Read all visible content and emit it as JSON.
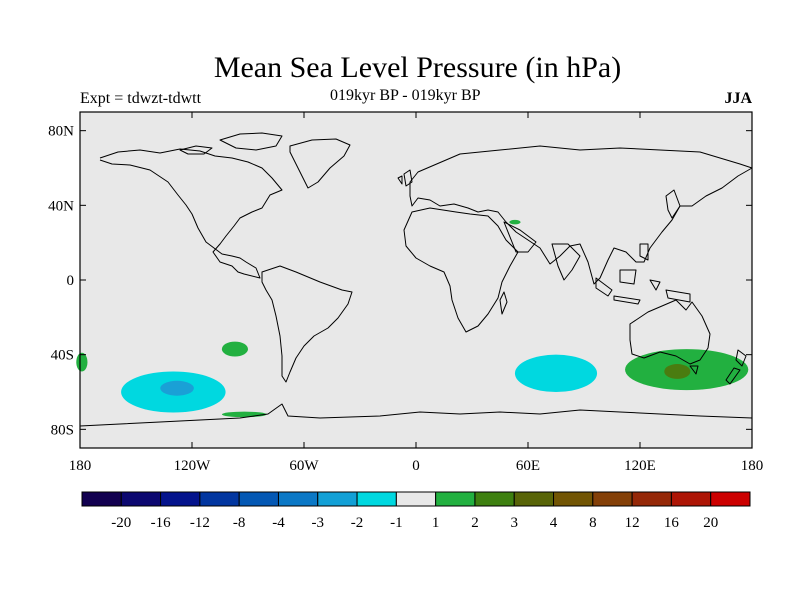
{
  "title": "Mean Sea Level Pressure (in hPa)",
  "experiment": "Expt = tdwzt-tdwtt",
  "period": "019kyr BP - 019kyr BP",
  "season": "JJA",
  "map": {
    "background": "#e8e8e8",
    "lat_ticks": [
      {
        "value": 80,
        "label": "80N"
      },
      {
        "value": 40,
        "label": "40N"
      },
      {
        "value": 0,
        "label": "0"
      },
      {
        "value": -40,
        "label": "40S"
      },
      {
        "value": -80,
        "label": "80S"
      }
    ],
    "lon_ticks": [
      {
        "value": -180,
        "label": "180"
      },
      {
        "value": -120,
        "label": "120W"
      },
      {
        "value": -60,
        "label": "60W"
      },
      {
        "value": 0,
        "label": "0"
      },
      {
        "value": 60,
        "label": "60E"
      },
      {
        "value": 120,
        "label": "120E"
      },
      {
        "value": 180,
        "label": "180"
      }
    ],
    "anomalies": [
      {
        "name": "south-pacific-low",
        "lon": -130,
        "lat": -60,
        "lon_r": 28,
        "lat_r": 11,
        "color": "#00d8e0"
      },
      {
        "name": "south-pacific-low-core",
        "lon": -128,
        "lat": -58,
        "lon_r": 9,
        "lat_r": 4,
        "color": "#1aa0d6"
      },
      {
        "name": "south-indian-low",
        "lon": 75,
        "lat": -50,
        "lon_r": 22,
        "lat_r": 10,
        "color": "#00d8e0"
      },
      {
        "name": "australia-high",
        "lon": 145,
        "lat": -48,
        "lon_r": 33,
        "lat_r": 11,
        "color": "#22b040"
      },
      {
        "name": "australia-high-core",
        "lon": 140,
        "lat": -49,
        "lon_r": 7,
        "lat_r": 4,
        "color": "#4a7c10"
      },
      {
        "name": "se-pacific-high",
        "lon": -97,
        "lat": -37,
        "lon_r": 7,
        "lat_r": 4,
        "color": "#22b040"
      },
      {
        "name": "dateline-high",
        "lon": -179,
        "lat": -44,
        "lon_r": 3,
        "lat_r": 5,
        "color": "#22b040"
      },
      {
        "name": "antarctic-high",
        "lon": -92,
        "lat": -72,
        "lon_r": 12,
        "lat_r": 1.5,
        "color": "#22b040"
      },
      {
        "name": "caspian-high",
        "lon": 53,
        "lat": 31,
        "lon_r": 3,
        "lat_r": 1.2,
        "color": "#22b040"
      }
    ]
  },
  "legend": {
    "colors": [
      "#120050",
      "#0c0870",
      "#04138c",
      "#0236a0",
      "#0458b4",
      "#0b78c6",
      "#12a0d6",
      "#00d8e0",
      "#e8e8e8",
      "#22b040",
      "#3e8010",
      "#586408",
      "#725504",
      "#844008",
      "#952808",
      "#ad1505",
      "#cc0000"
    ],
    "labels": [
      "-20",
      "-16",
      "-12",
      "-8",
      "-4",
      "-3",
      "-2",
      "-1",
      "1",
      "2",
      "3",
      "4",
      "8",
      "12",
      "16",
      "20"
    ]
  }
}
